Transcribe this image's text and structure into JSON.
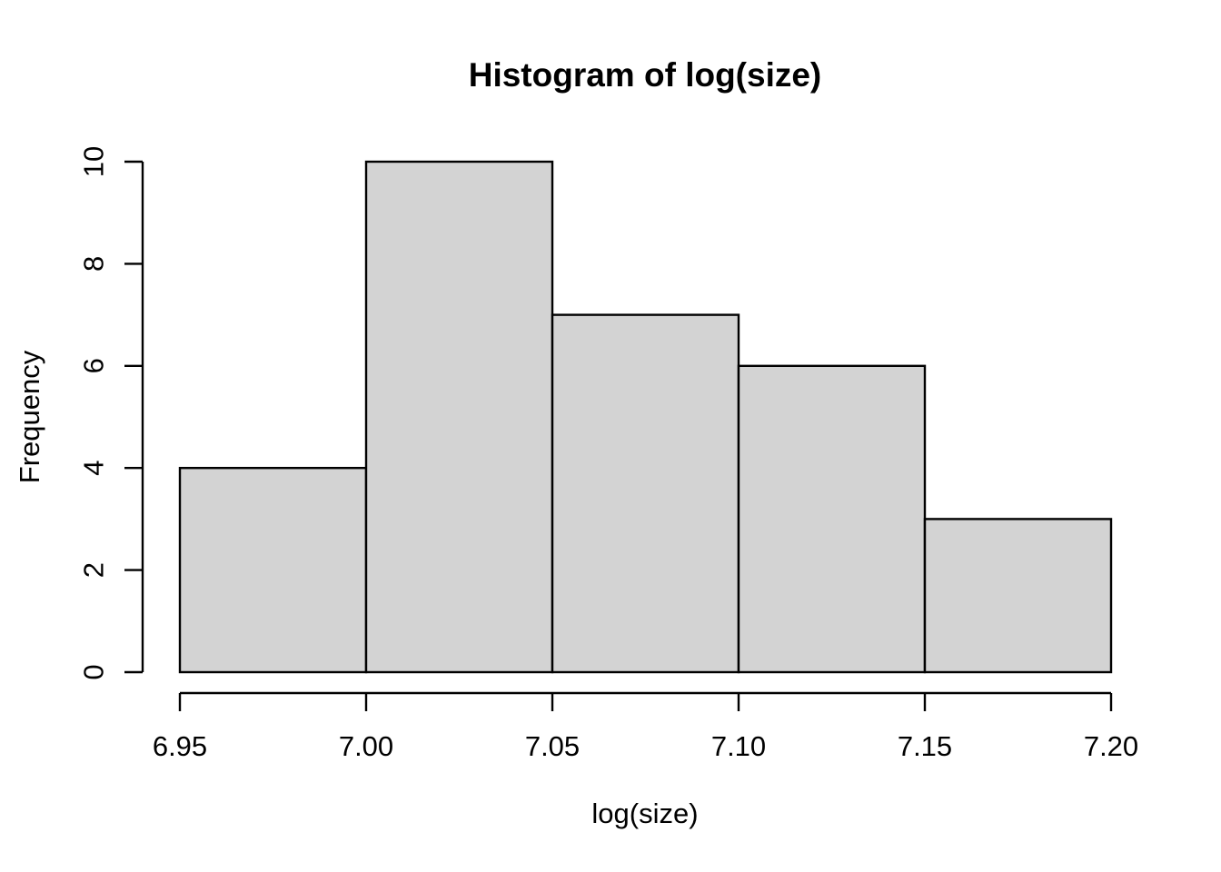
{
  "chart_data": {
    "type": "bar",
    "chart_kind": "histogram",
    "title": "Histogram of log(size)",
    "xlabel": "log(size)",
    "ylabel": "Frequency",
    "bin_breaks": [
      6.95,
      7.0,
      7.05,
      7.1,
      7.15,
      7.2
    ],
    "counts": [
      4,
      10,
      7,
      6,
      3
    ],
    "x_tick_values": [
      6.95,
      7.0,
      7.05,
      7.1,
      7.15,
      7.2
    ],
    "x_tick_labels": [
      "6.95",
      "7.00",
      "7.05",
      "7.10",
      "7.15",
      "7.20"
    ],
    "y_tick_values": [
      0,
      2,
      4,
      6,
      8,
      10
    ],
    "y_tick_labels": [
      "0",
      "2",
      "4",
      "6",
      "8",
      "10"
    ],
    "xlim": [
      6.95,
      7.2
    ],
    "ylim": [
      0,
      10
    ],
    "grid": false,
    "legend": "none",
    "colors": {
      "bar_fill": "#D3D3D3",
      "bar_stroke": "#000000",
      "axis": "#000000",
      "text": "#000000",
      "background": "#FFFFFF"
    }
  }
}
